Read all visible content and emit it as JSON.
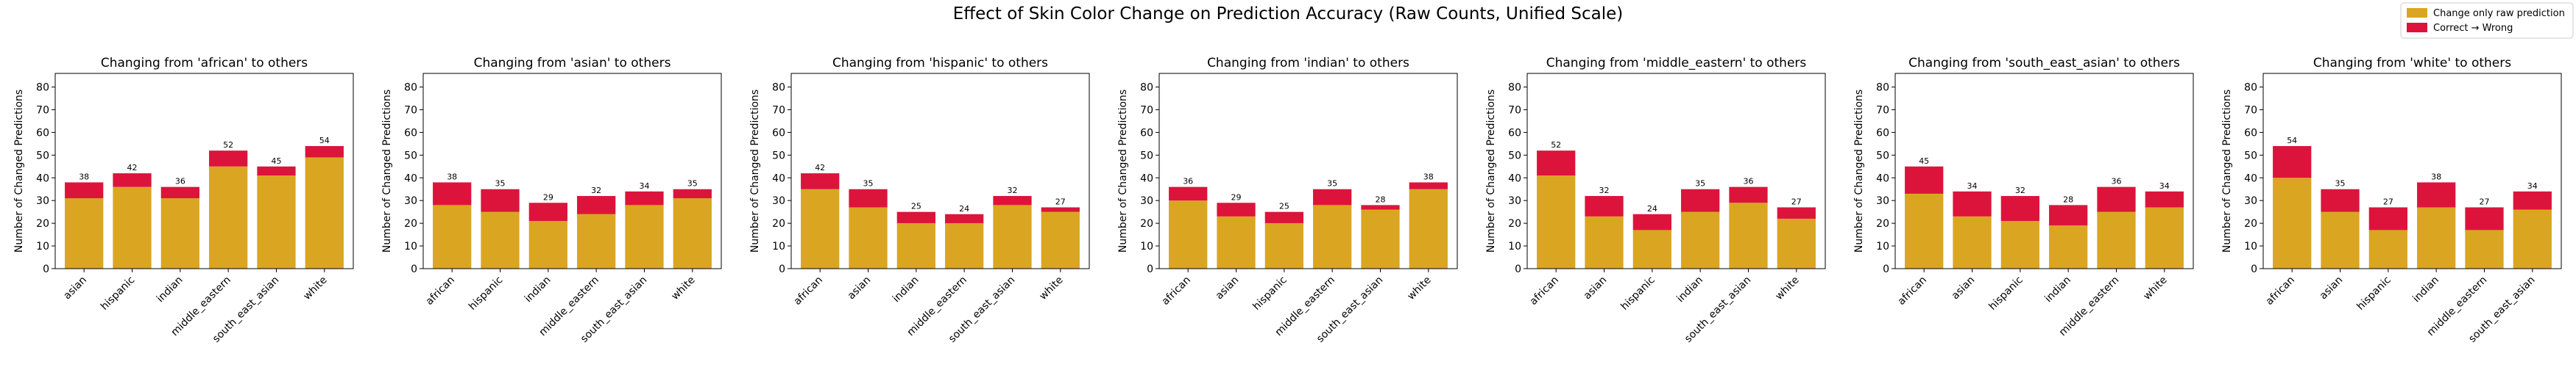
{
  "figure": {
    "title": "Effect of Skin Color Change on Prediction Accuracy (Raw Counts, Unified Scale)"
  },
  "legend": {
    "placement": "top-right",
    "items": [
      {
        "label": "Change only raw prediction",
        "color": "#DAA520"
      },
      {
        "label": "Correct → Wrong",
        "color": "#DC143C"
      }
    ]
  },
  "chart_data": [
    {
      "type": "bar",
      "stacked": true,
      "title": "Changing from 'african' to others",
      "xlabel": "",
      "ylabel": "Number of Changed Predictions",
      "ylim": [
        0,
        86
      ],
      "yticks": [
        0,
        10,
        20,
        30,
        40,
        50,
        60,
        70,
        80
      ],
      "categories": [
        "asian",
        "hispanic",
        "indian",
        "middle_eastern",
        "south_east_asian",
        "white"
      ],
      "series": [
        {
          "name": "Change only raw prediction",
          "values": [
            31,
            36,
            31,
            45,
            41,
            49
          ]
        },
        {
          "name": "Correct → Wrong",
          "values": [
            7,
            6,
            5,
            7,
            4,
            5
          ]
        }
      ],
      "totals": [
        38,
        42,
        36,
        52,
        45,
        54
      ]
    },
    {
      "type": "bar",
      "stacked": true,
      "title": "Changing from 'asian' to others",
      "xlabel": "",
      "ylabel": "Number of Changed Predictions",
      "ylim": [
        0,
        86
      ],
      "yticks": [
        0,
        10,
        20,
        30,
        40,
        50,
        60,
        70,
        80
      ],
      "categories": [
        "african",
        "hispanic",
        "indian",
        "middle_eastern",
        "south_east_asian",
        "white"
      ],
      "series": [
        {
          "name": "Change only raw prediction",
          "values": [
            28,
            25,
            21,
            24,
            28,
            31
          ]
        },
        {
          "name": "Correct → Wrong",
          "values": [
            10,
            10,
            8,
            8,
            6,
            4
          ]
        }
      ],
      "totals": [
        38,
        35,
        29,
        32,
        34,
        35
      ]
    },
    {
      "type": "bar",
      "stacked": true,
      "title": "Changing from 'hispanic' to others",
      "xlabel": "",
      "ylabel": "Number of Changed Predictions",
      "ylim": [
        0,
        86
      ],
      "yticks": [
        0,
        10,
        20,
        30,
        40,
        50,
        60,
        70,
        80
      ],
      "categories": [
        "african",
        "asian",
        "indian",
        "middle_eastern",
        "south_east_asian",
        "white"
      ],
      "series": [
        {
          "name": "Change only raw prediction",
          "values": [
            35,
            27,
            20,
            20,
            28,
            25
          ]
        },
        {
          "name": "Correct → Wrong",
          "values": [
            7,
            8,
            5,
            4,
            4,
            2
          ]
        }
      ],
      "totals": [
        42,
        35,
        25,
        24,
        32,
        27
      ]
    },
    {
      "type": "bar",
      "stacked": true,
      "title": "Changing from 'indian' to others",
      "xlabel": "",
      "ylabel": "Number of Changed Predictions",
      "ylim": [
        0,
        86
      ],
      "yticks": [
        0,
        10,
        20,
        30,
        40,
        50,
        60,
        70,
        80
      ],
      "categories": [
        "african",
        "asian",
        "hispanic",
        "middle_eastern",
        "south_east_asian",
        "white"
      ],
      "series": [
        {
          "name": "Change only raw prediction",
          "values": [
            30,
            23,
            20,
            28,
            26,
            35
          ]
        },
        {
          "name": "Correct → Wrong",
          "values": [
            6,
            6,
            5,
            7,
            2,
            3
          ]
        }
      ],
      "totals": [
        36,
        29,
        25,
        35,
        28,
        38
      ]
    },
    {
      "type": "bar",
      "stacked": true,
      "title": "Changing from 'middle_eastern' to others",
      "xlabel": "",
      "ylabel": "Number of Changed Predictions",
      "ylim": [
        0,
        86
      ],
      "yticks": [
        0,
        10,
        20,
        30,
        40,
        50,
        60,
        70,
        80
      ],
      "categories": [
        "african",
        "asian",
        "hispanic",
        "indian",
        "south_east_asian",
        "white"
      ],
      "series": [
        {
          "name": "Change only raw prediction",
          "values": [
            41,
            23,
            17,
            25,
            29,
            22
          ]
        },
        {
          "name": "Correct → Wrong",
          "values": [
            11,
            9,
            7,
            10,
            7,
            5
          ]
        }
      ],
      "totals": [
        52,
        32,
        24,
        35,
        36,
        27
      ]
    },
    {
      "type": "bar",
      "stacked": true,
      "title": "Changing from 'south_east_asian' to others",
      "xlabel": "",
      "ylabel": "Number of Changed Predictions",
      "ylim": [
        0,
        86
      ],
      "yticks": [
        0,
        10,
        20,
        30,
        40,
        50,
        60,
        70,
        80
      ],
      "categories": [
        "african",
        "asian",
        "hispanic",
        "indian",
        "middle_eastern",
        "white"
      ],
      "series": [
        {
          "name": "Change only raw prediction",
          "values": [
            33,
            23,
            21,
            19,
            25,
            27
          ]
        },
        {
          "name": "Correct → Wrong",
          "values": [
            12,
            11,
            11,
            9,
            11,
            7
          ]
        }
      ],
      "totals": [
        45,
        34,
        32,
        28,
        36,
        34
      ]
    },
    {
      "type": "bar",
      "stacked": true,
      "title": "Changing from 'white' to others",
      "xlabel": "",
      "ylabel": "Number of Changed Predictions",
      "ylim": [
        0,
        86
      ],
      "yticks": [
        0,
        10,
        20,
        30,
        40,
        50,
        60,
        70,
        80
      ],
      "categories": [
        "african",
        "asian",
        "hispanic",
        "indian",
        "middle_eastern",
        "south_east_asian"
      ],
      "series": [
        {
          "name": "Change only raw prediction",
          "values": [
            40,
            25,
            17,
            27,
            17,
            26
          ]
        },
        {
          "name": "Correct → Wrong",
          "values": [
            14,
            10,
            10,
            11,
            10,
            8
          ]
        }
      ],
      "totals": [
        54,
        35,
        27,
        38,
        27,
        34
      ]
    }
  ]
}
